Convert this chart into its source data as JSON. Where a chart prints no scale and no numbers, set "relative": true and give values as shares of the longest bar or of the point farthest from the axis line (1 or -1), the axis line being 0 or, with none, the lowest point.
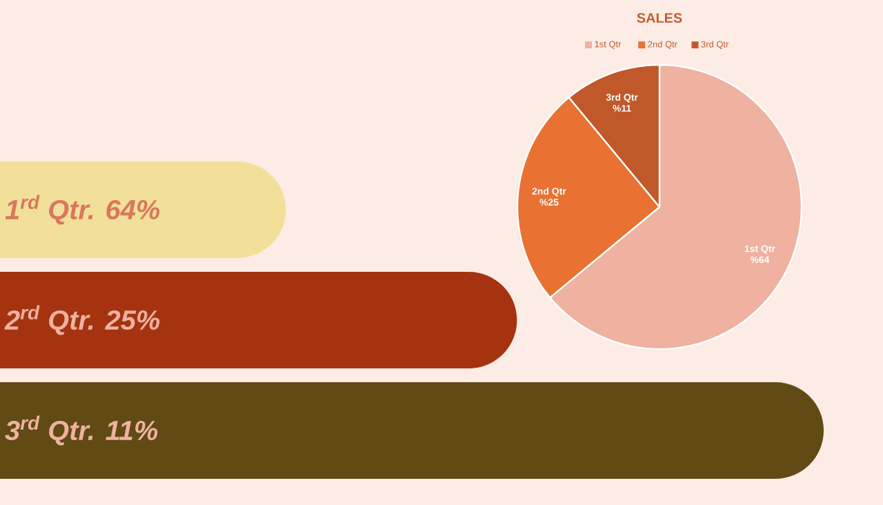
{
  "chart_data": [
    {
      "type": "pie",
      "title": "SALES",
      "categories": [
        "1st Qtr",
        "2nd Qtr",
        "3rd Qtr"
      ],
      "values": [
        64,
        25,
        11
      ],
      "colors": [
        "#efb1a0",
        "#e97132",
        "#c0582a"
      ],
      "value_labels": [
        "%64",
        "%25",
        "%11"
      ],
      "legend": "top"
    },
    {
      "type": "bar",
      "orientation": "horizontal",
      "relative": true,
      "categories": [
        null,
        null,
        null
      ],
      "values": [
        0.388,
        0.651,
        1
      ],
      "colors": [
        "#f2e09a",
        "#a5330f",
        "#614a14"
      ],
      "annotations": [
        "1$^{rd}$ Qtr. 64%",
        "2$^{rd}$ Qtr. 25%",
        "3$^{rd}$ Qtr. 11%"
      ]
    }
  ]
}
